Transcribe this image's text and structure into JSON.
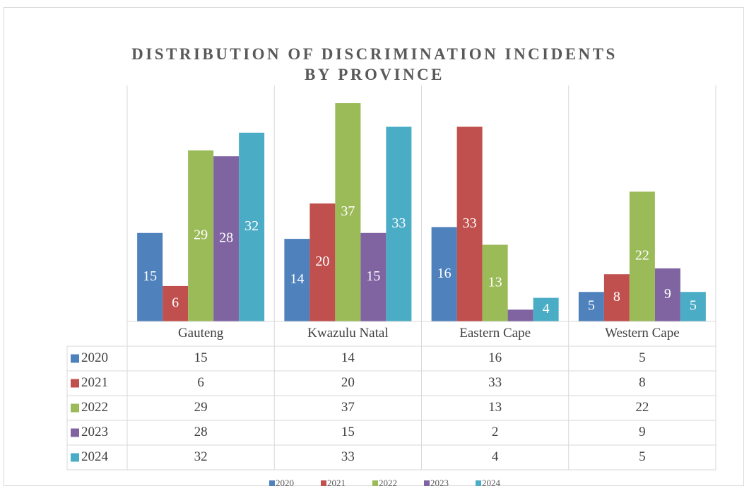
{
  "chart_data": {
    "type": "bar",
    "title": "DISTRIBUTION OF DISCRIMINATION INCIDENTS BY PROVINCE",
    "categories": [
      "Gauteng",
      "Kwazulu Natal",
      "Eastern Cape",
      "Western Cape"
    ],
    "ylim": [
      0,
      40
    ],
    "series": [
      {
        "name": "2020",
        "color": "#4f81bd",
        "values": [
          15,
          14,
          16,
          5
        ]
      },
      {
        "name": "2021",
        "color": "#c0504d",
        "values": [
          6,
          20,
          33,
          8
        ]
      },
      {
        "name": "2022",
        "color": "#9bbb59",
        "values": [
          29,
          37,
          13,
          22
        ]
      },
      {
        "name": "2023",
        "color": "#8064a2",
        "values": [
          28,
          15,
          2,
          9
        ],
        "value_labels": [
          "28",
          "15",
          null,
          "9"
        ]
      },
      {
        "name": "2024",
        "color": "#4bacc6",
        "values": [
          32,
          33,
          4,
          5
        ]
      }
    ]
  }
}
